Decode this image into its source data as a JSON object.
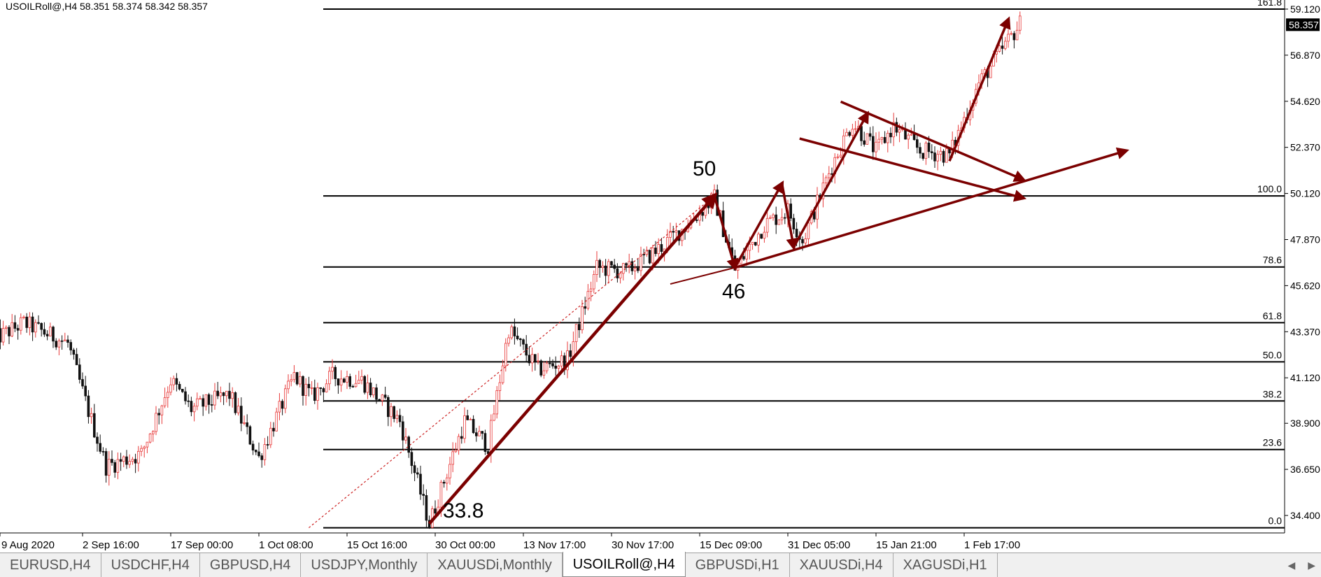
{
  "header": {
    "text": "USOILRoll@,H4  58.351 58.374 58.342 58.357"
  },
  "tabs": [
    {
      "label": "EURUSD,H4",
      "active": false
    },
    {
      "label": "USDCHF,H4",
      "active": false
    },
    {
      "label": "GBPUSD,H4",
      "active": false
    },
    {
      "label": "USDJPY,Monthly",
      "active": false
    },
    {
      "label": "XAUUSDi,Monthly",
      "active": false
    },
    {
      "label": "USOILRoll@,H4",
      "active": true
    },
    {
      "label": "GBPUSDi,H1",
      "active": false
    },
    {
      "label": "XAUUSDi,H4",
      "active": false
    },
    {
      "label": "XAGUSDi,H1",
      "active": false
    }
  ],
  "tab_scroll": {
    "left": "◀",
    "right": "▶"
  },
  "chart_data": {
    "type": "candlestick",
    "symbol": "USOILRoll@",
    "timeframe": "H4",
    "ohlc": {
      "open": 58.351,
      "high": 58.374,
      "low": 58.342,
      "close": 58.357
    },
    "current_price": "58.357",
    "ylim": [
      33.8,
      59.6
    ],
    "y_ticks": [
      {
        "label": "59.120",
        "value": 59.12
      },
      {
        "label": "56.870",
        "value": 56.87
      },
      {
        "label": "54.620",
        "value": 54.62
      },
      {
        "label": "52.370",
        "value": 52.37
      },
      {
        "label": "50.120",
        "value": 50.12
      },
      {
        "label": "47.870",
        "value": 47.87
      },
      {
        "label": "45.620",
        "value": 45.62
      },
      {
        "label": "43.370",
        "value": 43.37
      },
      {
        "label": "41.120",
        "value": 41.12
      },
      {
        "label": "38.900",
        "value": 38.9
      },
      {
        "label": "36.650",
        "value": 36.65
      },
      {
        "label": "34.400",
        "value": 34.4
      }
    ],
    "x_ticks": [
      {
        "label": "9 Aug 2020",
        "index": 0
      },
      {
        "label": "2 Sep 16:00",
        "index": 30
      },
      {
        "label": "17 Sep 00:00",
        "index": 60
      },
      {
        "label": "1 Oct 08:00",
        "index": 90
      },
      {
        "label": "15 Oct 16:00",
        "index": 120
      },
      {
        "label": "30 Oct 00:00",
        "index": 150
      },
      {
        "label": "13 Nov 17:00",
        "index": 180
      },
      {
        "label": "30 Nov 17:00",
        "index": 210
      },
      {
        "label": "15 Dec 09:00",
        "index": 240
      },
      {
        "label": "31 Dec 05:00",
        "index": 270
      },
      {
        "label": "15 Jan 21:00",
        "index": 300
      },
      {
        "label": "1 Feb 17:00",
        "index": 330
      }
    ],
    "candle_count": 350,
    "fibonacci": {
      "start": {
        "index": 107,
        "price": 33.8
      },
      "end": {
        "index": 245,
        "price": 50.0
      },
      "levels": [
        {
          "label": "0.0",
          "price": 33.8
        },
        {
          "label": "23.6",
          "price": 37.62
        },
        {
          "label": "38.2",
          "price": 39.99
        },
        {
          "label": "50.0",
          "price": 41.9
        },
        {
          "label": "61.8",
          "price": 43.81
        },
        {
          "label": "78.6",
          "price": 46.53
        },
        {
          "label": "100.0",
          "price": 50.0
        },
        {
          "label": "161.8",
          "price": 60.02
        }
      ]
    },
    "price_path": [
      {
        "index": 0,
        "price": 43.0
      },
      {
        "index": 10,
        "price": 43.8
      },
      {
        "index": 25,
        "price": 42.8
      },
      {
        "index": 32,
        "price": 39.5
      },
      {
        "index": 38,
        "price": 36.8
      },
      {
        "index": 50,
        "price": 37.4
      },
      {
        "index": 60,
        "price": 41.0
      },
      {
        "index": 67,
        "price": 39.6
      },
      {
        "index": 80,
        "price": 40.3
      },
      {
        "index": 90,
        "price": 37.2
      },
      {
        "index": 102,
        "price": 41.2
      },
      {
        "index": 108,
        "price": 40.2
      },
      {
        "index": 115,
        "price": 41.2
      },
      {
        "index": 125,
        "price": 41.0
      },
      {
        "index": 138,
        "price": 39.0
      },
      {
        "index": 148,
        "price": 34.0
      },
      {
        "index": 160,
        "price": 39.0
      },
      {
        "index": 168,
        "price": 37.8
      },
      {
        "index": 175,
        "price": 43.5
      },
      {
        "index": 185,
        "price": 41.5
      },
      {
        "index": 195,
        "price": 42.0
      },
      {
        "index": 205,
        "price": 46.5
      },
      {
        "index": 215,
        "price": 46.3
      },
      {
        "index": 225,
        "price": 47.3
      },
      {
        "index": 235,
        "price": 48.5
      },
      {
        "index": 245,
        "price": 49.9
      },
      {
        "index": 252,
        "price": 46.4
      },
      {
        "index": 262,
        "price": 48.6
      },
      {
        "index": 270,
        "price": 49.3
      },
      {
        "index": 275,
        "price": 47.8
      },
      {
        "index": 285,
        "price": 51.5
      },
      {
        "index": 292,
        "price": 53.6
      },
      {
        "index": 300,
        "price": 52.2
      },
      {
        "index": 306,
        "price": 53.4
      },
      {
        "index": 315,
        "price": 52.2
      },
      {
        "index": 325,
        "price": 52.0
      },
      {
        "index": 335,
        "price": 55.5
      },
      {
        "index": 349,
        "price": 58.4
      }
    ],
    "annotations": [
      {
        "text": "50",
        "index": 240,
        "price": 51.0
      },
      {
        "text": "46",
        "index": 250,
        "price": 45.0
      },
      {
        "text": "33.8",
        "index": 155,
        "price": 34.3
      }
    ],
    "arrows": [
      {
        "from": {
          "index": 148,
          "price": 34.0
        },
        "to": {
          "index": 245,
          "price": 50.0
        }
      },
      {
        "from": {
          "index": 245,
          "price": 50.0
        },
        "to": {
          "index": 252,
          "price": 46.5
        }
      },
      {
        "from": {
          "index": 252,
          "price": 46.5
        },
        "to": {
          "index": 268,
          "price": 50.6
        }
      },
      {
        "from": {
          "index": 268,
          "price": 50.6
        },
        "to": {
          "index": 272,
          "price": 47.5
        }
      },
      {
        "from": {
          "index": 272,
          "price": 47.5
        },
        "to": {
          "index": 297,
          "price": 54.0
        }
      },
      {
        "from": {
          "index": 252,
          "price": 46.5
        },
        "to": {
          "index": 385,
          "price": 52.2
        }
      },
      {
        "from": {
          "index": 288,
          "price": 54.6
        },
        "to": {
          "index": 350,
          "price": 50.8
        }
      },
      {
        "from": {
          "index": 274,
          "price": 52.8
        },
        "to": {
          "index": 350,
          "price": 49.9
        }
      },
      {
        "from": {
          "index": 325,
          "price": 51.7
        },
        "to": {
          "index": 345,
          "price": 58.6
        }
      }
    ],
    "trendlines": [
      {
        "from": {
          "index": 230,
          "price": 45.7
        },
        "to": {
          "index": 252,
          "price": 46.5
        }
      },
      {
        "from": {
          "index": 107,
          "price": 33.8
        },
        "to": {
          "index": 245,
          "price": 50.0
        }
      }
    ],
    "colors": {
      "bull_candle": "#e83a3a",
      "bear_candle": "#111111",
      "drawing": "#7b0000",
      "fib_line": "#000000",
      "trend_dotted": "#cc2222"
    }
  }
}
